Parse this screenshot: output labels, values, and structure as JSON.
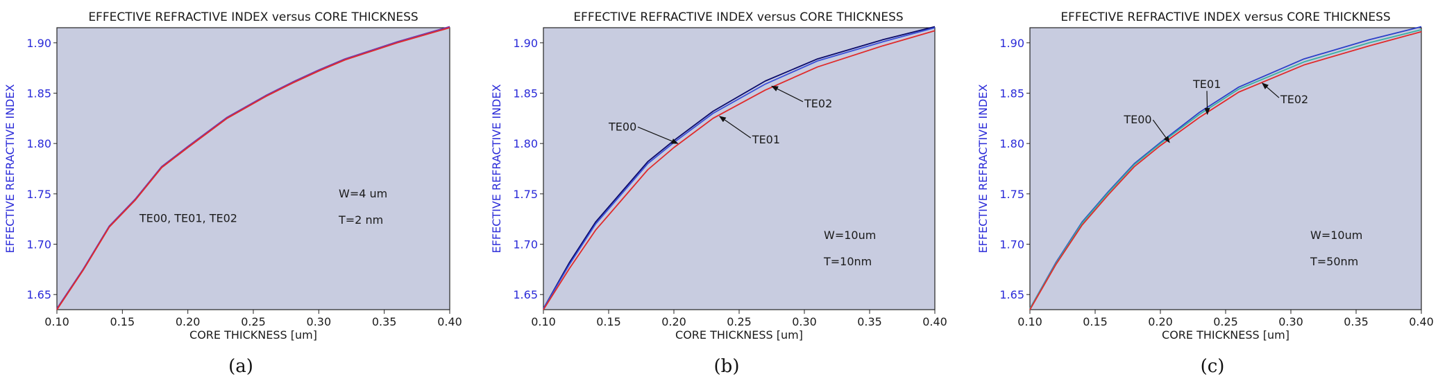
{
  "chart_data": [
    {
      "type": "line",
      "title": "EFFECTIVE REFRACTIVE INDEX versus CORE THICKNESS",
      "xlabel": "CORE THICKNESS [um]",
      "ylabel": "EFFECTIVE REFRACTIVE INDEX",
      "xlim": [
        0.1,
        0.4
      ],
      "ylim": [
        1.635,
        1.915
      ],
      "xticks": [
        "0.10",
        "0.15",
        "0.20",
        "0.25",
        "0.30",
        "0.35",
        "0.40"
      ],
      "yticks": [
        "1.65",
        "1.70",
        "1.75",
        "1.80",
        "1.85",
        "1.90"
      ],
      "grid": false,
      "background": "#c8cce0",
      "caption": "(a)",
      "annotations": [
        "W=4 um",
        "T=2 nm"
      ],
      "series": [
        {
          "name": "TE00",
          "color": "#2b2fa8",
          "x": [
            0.1,
            0.12,
            0.14,
            0.16,
            0.18,
            0.2,
            0.23,
            0.26,
            0.28,
            0.3,
            0.32,
            0.36,
            0.4
          ],
          "y": [
            1.636,
            1.675,
            1.718,
            1.745,
            1.777,
            1.797,
            1.826,
            1.848,
            1.861,
            1.873,
            1.884,
            1.901,
            1.916
          ]
        },
        {
          "name": "TE01",
          "color": "#7b3aa8",
          "x": [
            0.1,
            0.12,
            0.14,
            0.16,
            0.18,
            0.2,
            0.23,
            0.26,
            0.28,
            0.3,
            0.32,
            0.36,
            0.4
          ],
          "y": [
            1.636,
            1.675,
            1.718,
            1.745,
            1.777,
            1.797,
            1.826,
            1.848,
            1.861,
            1.873,
            1.884,
            1.901,
            1.916
          ]
        },
        {
          "name": "TE02",
          "color": "#e02a2a",
          "x": [
            0.1,
            0.12,
            0.14,
            0.16,
            0.18,
            0.2,
            0.23,
            0.26,
            0.28,
            0.3,
            0.32,
            0.36,
            0.4
          ],
          "y": [
            1.635,
            1.674,
            1.717,
            1.744,
            1.776,
            1.796,
            1.825,
            1.847,
            1.86,
            1.872,
            1.883,
            1.9,
            1.915
          ]
        }
      ],
      "labels": [
        {
          "text": "TE00, TE01, TE02",
          "x": 0.163,
          "y": 1.722,
          "arrow_to": null
        }
      ]
    },
    {
      "type": "line",
      "title": "EFFECTIVE REFRACTIVE INDEX versus CORE THICKNESS",
      "xlabel": "CORE THICKNESS [um]",
      "ylabel": "EFFECTIVE REFRACTIVE INDEX",
      "xlim": [
        0.1,
        0.4
      ],
      "ylim": [
        1.635,
        1.915
      ],
      "xticks": [
        "0.10",
        "0.15",
        "0.20",
        "0.25",
        "0.30",
        "0.35",
        "0.40"
      ],
      "yticks": [
        "1.65",
        "1.70",
        "1.75",
        "1.80",
        "1.85",
        "1.90"
      ],
      "grid": false,
      "background": "#c8cce0",
      "caption": "(b)",
      "annotations": [
        "W=10um",
        "T=10nm"
      ],
      "series": [
        {
          "name": "TE00",
          "color": "#0a0a6a",
          "x": [
            0.1,
            0.12,
            0.14,
            0.16,
            0.18,
            0.2,
            0.23,
            0.27,
            0.31,
            0.36,
            0.4
          ],
          "y": [
            1.636,
            1.682,
            1.722,
            1.752,
            1.782,
            1.803,
            1.832,
            1.862,
            1.884,
            1.903,
            1.916
          ]
        },
        {
          "name": "TE01",
          "color": "#3a4ed8",
          "x": [
            0.1,
            0.12,
            0.14,
            0.16,
            0.18,
            0.2,
            0.23,
            0.27,
            0.31,
            0.36,
            0.4
          ],
          "y": [
            1.636,
            1.68,
            1.72,
            1.75,
            1.78,
            1.801,
            1.83,
            1.859,
            1.882,
            1.901,
            1.915
          ]
        },
        {
          "name": "TE02",
          "color": "#e02a2a",
          "x": [
            0.1,
            0.12,
            0.14,
            0.16,
            0.18,
            0.2,
            0.23,
            0.27,
            0.31,
            0.36,
            0.4
          ],
          "y": [
            1.635,
            1.676,
            1.714,
            1.744,
            1.774,
            1.796,
            1.825,
            1.853,
            1.876,
            1.897,
            1.912
          ]
        }
      ],
      "labels": [
        {
          "text": "TE00",
          "x": 0.15,
          "y": 1.813,
          "arrow_to": [
            0.203,
            1.8
          ]
        },
        {
          "text": "TE01",
          "x": 0.26,
          "y": 1.8,
          "arrow_to": [
            0.235,
            1.827
          ]
        },
        {
          "text": "TE02",
          "x": 0.3,
          "y": 1.836,
          "arrow_to": [
            0.275,
            1.857
          ]
        }
      ]
    },
    {
      "type": "line",
      "title": "EFFECTIVE REFRACTIVE INDEX versus CORE THICKNESS",
      "xlabel": "CORE THICKNESS [um]",
      "ylabel": "EFFECTIVE REFRACTIVE INDEX",
      "xlim": [
        0.1,
        0.4
      ],
      "ylim": [
        1.635,
        1.915
      ],
      "xticks": [
        "0.10",
        "0.15",
        "0.20",
        "0.25",
        "0.30",
        "0.35",
        "0.40"
      ],
      "yticks": [
        "1.65",
        "1.70",
        "1.75",
        "1.80",
        "1.85",
        "1.90"
      ],
      "grid": false,
      "background": "#c8cce0",
      "caption": "(c)",
      "annotations": [
        "W=10um",
        "T=50nm"
      ],
      "series": [
        {
          "name": "TE00",
          "color": "#2b3fc8",
          "x": [
            0.1,
            0.12,
            0.14,
            0.16,
            0.18,
            0.2,
            0.23,
            0.26,
            0.31,
            0.36,
            0.4
          ],
          "y": [
            1.636,
            1.682,
            1.722,
            1.752,
            1.78,
            1.801,
            1.831,
            1.856,
            1.884,
            1.903,
            1.916
          ]
        },
        {
          "name": "TE01",
          "color": "#3ab0a0",
          "x": [
            0.1,
            0.12,
            0.14,
            0.16,
            0.18,
            0.2,
            0.23,
            0.26,
            0.31,
            0.36,
            0.4
          ],
          "y": [
            1.636,
            1.681,
            1.721,
            1.751,
            1.779,
            1.8,
            1.829,
            1.854,
            1.881,
            1.9,
            1.913
          ]
        },
        {
          "name": "TE02",
          "color": "#e02a2a",
          "x": [
            0.1,
            0.12,
            0.14,
            0.16,
            0.18,
            0.2,
            0.23,
            0.26,
            0.31,
            0.36,
            0.4
          ],
          "y": [
            1.635,
            1.68,
            1.719,
            1.749,
            1.777,
            1.798,
            1.826,
            1.851,
            1.878,
            1.897,
            1.911
          ]
        }
      ],
      "labels": [
        {
          "text": "TE00",
          "x": 0.172,
          "y": 1.82,
          "arrow_to": [
            0.207,
            1.801
          ]
        },
        {
          "text": "TE01",
          "x": 0.225,
          "y": 1.855,
          "arrow_to": [
            0.236,
            1.829
          ]
        },
        {
          "text": "TE02",
          "x": 0.292,
          "y": 1.84,
          "arrow_to": [
            0.278,
            1.86
          ]
        }
      ]
    }
  ]
}
